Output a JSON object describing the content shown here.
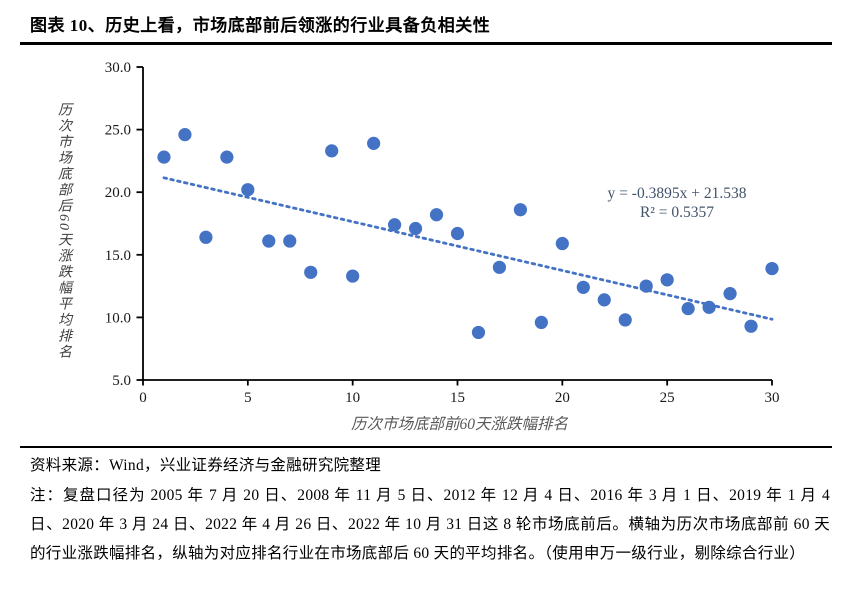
{
  "page": {
    "title": "图表 10、历史上看，市场底部前后领涨的行业具备负相关性",
    "source": "资料来源：Wind，兴业证券经济与金融研究院整理",
    "note": "注：复盘口径为 2005 年 7 月 20 日、2008 年 11 月 5 日、2012 年 12 月 4 日、2016 年 3 月 1 日、2019 年 1 月 4 日、2020 年 3 月 24 日、2022 年 4 月 26 日、2022 年 10 月 31 日这 8 轮市场底前后。横轴为历次市场底部前 60 天的行业涨跌幅排名，纵轴为对应排名行业在市场底部后 60 天的平均排名。（使用申万一级行业，剔除综合行业）"
  },
  "chart_data": {
    "type": "scatter",
    "xlabel": "历次市场底部前60天涨跌幅排名",
    "ylabel": "历次市场底部后60天涨跌幅平均排名",
    "xlim": [
      0,
      30
    ],
    "ylim": [
      5,
      30
    ],
    "x_ticks": [
      0,
      5,
      10,
      15,
      20,
      25,
      30
    ],
    "y_ticks": [
      30,
      25,
      20,
      15,
      10,
      5
    ],
    "grid": false,
    "legend": "none",
    "x": [
      1,
      2,
      3,
      4,
      5,
      6,
      7,
      8,
      9,
      10,
      11,
      12,
      13,
      14,
      15,
      16,
      17,
      18,
      19,
      20,
      21,
      22,
      23,
      24,
      25,
      26,
      27,
      28,
      29,
      30
    ],
    "y": [
      22.8,
      24.6,
      16.4,
      22.8,
      20.2,
      16.1,
      16.1,
      13.6,
      23.3,
      13.3,
      23.9,
      17.4,
      17.1,
      18.2,
      16.7,
      8.8,
      14.0,
      18.6,
      9.6,
      15.9,
      12.4,
      11.4,
      9.8,
      12.5,
      13.0,
      10.7,
      10.8,
      11.9,
      9.3,
      13.9
    ],
    "trendline": {
      "slope": -0.3895,
      "intercept": 21.538,
      "x_start": 1,
      "x_end": 30,
      "equation_line1": "y = -0.3895x + 21.538",
      "equation_line2": "R² = 0.5357"
    },
    "colors": {
      "point": "#4472C4",
      "trendline": "#4472C4",
      "equation_text": "#44546A",
      "axis": "#000000",
      "tick_text": "#1a1a1a",
      "axis_label_text": "#595959"
    }
  }
}
